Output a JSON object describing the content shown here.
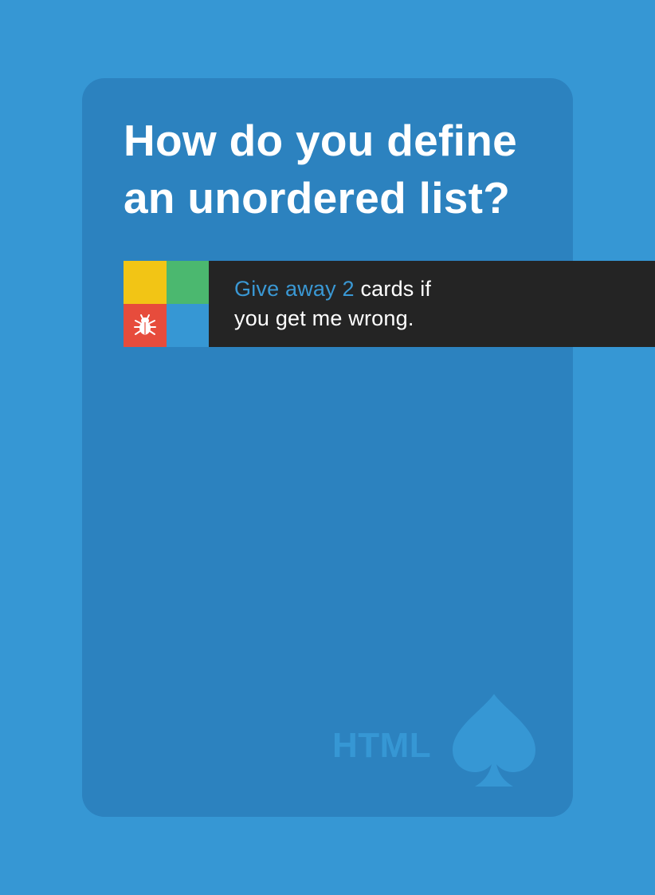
{
  "card": {
    "question_line1": "How do you define",
    "question_line2": "an unordered list?",
    "penalty": {
      "highlight": "Give away 2",
      "rest_line1": " cards if",
      "line2": "you get me wrong.",
      "icon_name": "bug-icon"
    },
    "suit_label": "HTML",
    "suit_icon": "spade-icon"
  },
  "colors": {
    "background": "#3697d4",
    "card": "#2c82bf",
    "banner": "#242424",
    "highlight": "#3a98d4",
    "square_yellow": "#f2c515",
    "square_green": "#4bb86f",
    "square_red": "#e74c3c",
    "square_blue": "#3697d4"
  }
}
